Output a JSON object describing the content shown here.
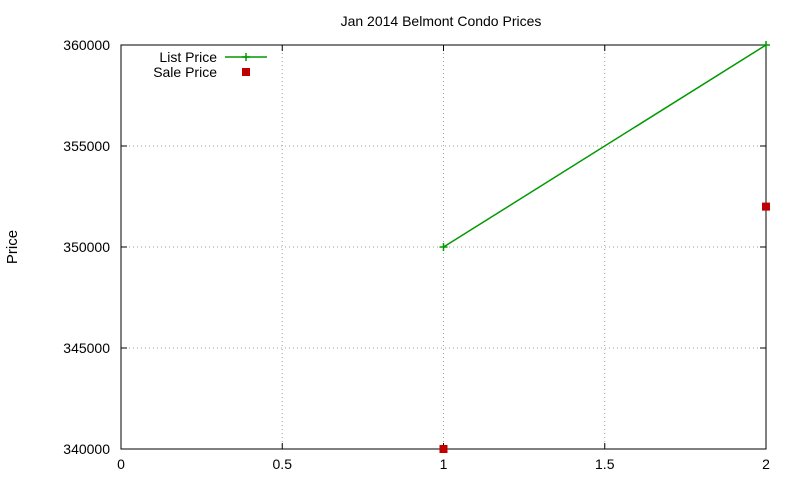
{
  "chart_data": {
    "type": "line",
    "title": "Jan 2014 Belmont Condo Prices",
    "xlabel": "",
    "ylabel": "Price",
    "xlim": [
      0,
      2
    ],
    "ylim": [
      340000,
      360000
    ],
    "x_ticks": [
      0,
      0.5,
      1,
      1.5,
      2
    ],
    "x_tick_labels": [
      "0",
      "0.5",
      "1",
      "1.5",
      "2"
    ],
    "y_ticks": [
      340000,
      345000,
      350000,
      355000,
      360000
    ],
    "y_tick_labels": [
      "340000",
      "345000",
      "350000",
      "355000",
      "360000"
    ],
    "grid": true,
    "legend_position": "top-left",
    "series": [
      {
        "name": "List Price",
        "style": "linespoints",
        "marker": "plus",
        "color": "#009900",
        "points": [
          {
            "x": 1,
            "y": 350000
          },
          {
            "x": 2,
            "y": 360000
          }
        ]
      },
      {
        "name": "Sale Price",
        "style": "points",
        "marker": "square",
        "color": "#c00000",
        "points": [
          {
            "x": 1,
            "y": 340000
          },
          {
            "x": 2,
            "y": 352000
          }
        ]
      }
    ]
  }
}
